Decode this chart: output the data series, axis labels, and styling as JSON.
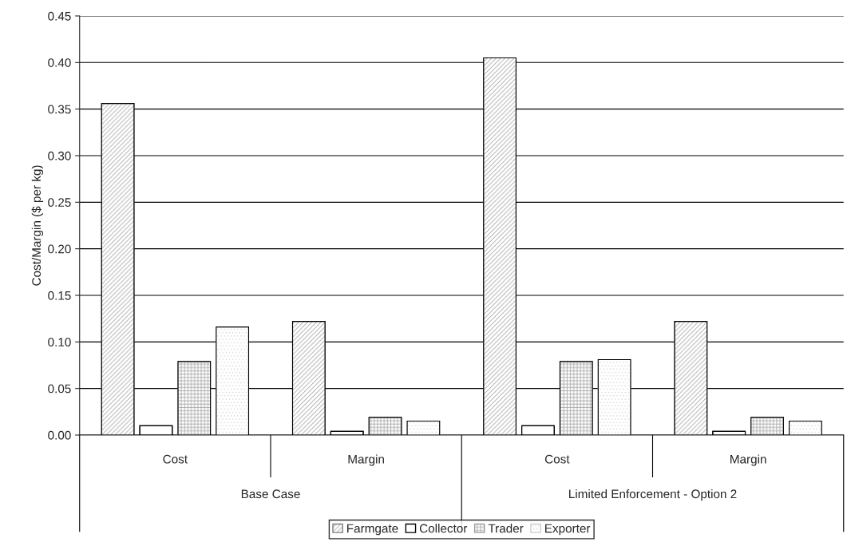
{
  "chart_data": {
    "type": "bar",
    "ylabel": "Cost/Margin ($ per kg)",
    "categories": [
      "Cost",
      "Margin",
      "Cost",
      "Margin"
    ],
    "annotations": [
      "Base Case",
      "Limited Enforcement - Option 2"
    ],
    "series": [
      {
        "name": "Farmgate",
        "color": "#808080",
        "values": [
          0.356,
          0.122,
          0.405,
          0.122
        ]
      },
      {
        "name": "Collector",
        "color": "#ffffff",
        "values": [
          0.01,
          0.004,
          0.01,
          0.004
        ]
      },
      {
        "name": "Trader",
        "color": "#a0a0a0",
        "values": [
          0.079,
          0.019,
          0.079,
          0.019
        ]
      },
      {
        "name": "Exporter",
        "color": "#d0d0d0",
        "values": [
          0.116,
          0.015,
          0.081,
          0.015
        ]
      }
    ],
    "ylim": [
      0,
      0.45
    ],
    "yticks": [
      {
        "value": 0,
        "label": "0.00"
      },
      {
        "value": 0.05,
        "label": "0.05"
      },
      {
        "value": 0.1,
        "label": "0.10"
      },
      {
        "value": 0.15,
        "label": "0.15"
      },
      {
        "value": 0.2,
        "label": "0.20"
      },
      {
        "value": 0.25,
        "label": "0.25"
      },
      {
        "value": 0.3,
        "label": "0.30"
      },
      {
        "value": 0.35,
        "label": "0.35"
      },
      {
        "value": 0.4,
        "label": "0.40"
      },
      {
        "value": 0.45,
        "label": "0.45"
      }
    ],
    "grid": "y",
    "legend": "bottom"
  }
}
